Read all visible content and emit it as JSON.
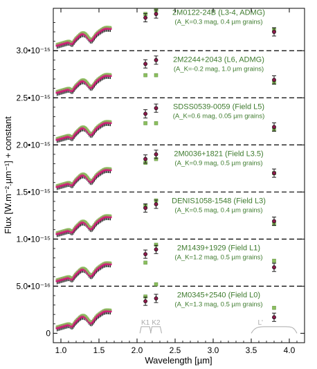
{
  "chart_data": {
    "type": "scatter",
    "xlabel": "Wavelength [µm]",
    "ylabel": "Flux [W.m⁻².µm⁻¹] + constant",
    "xlim": [
      0.9,
      4.2
    ],
    "ylim": [
      -1e-16,
      3.45e-15
    ],
    "x_ticks": [
      "1.0",
      "1.5",
      "2.0",
      "2.5",
      "3.0",
      "3.5",
      "4.0"
    ],
    "y_ticks": [
      {
        "v": 0,
        "label": "0"
      },
      {
        "v": 5e-16,
        "label": "5.0•10⁻¹⁶"
      },
      {
        "v": 1e-15,
        "label": "1.0•10⁻¹⁵"
      },
      {
        "v": 1.5e-15,
        "label": "1.5•10⁻¹⁵"
      },
      {
        "v": 2e-15,
        "label": "2.0•10⁻¹⁵"
      },
      {
        "v": 2.5e-15,
        "label": "2.5•10⁻¹⁵"
      },
      {
        "v": 3e-15,
        "label": "3.0•10⁻¹⁵"
      }
    ],
    "separators": [
      5e-16,
      1e-15,
      1.5e-15,
      2e-15,
      2.5e-15,
      3e-15
    ],
    "filters": [
      {
        "name": "K1",
        "center": 2.11
      },
      {
        "name": "K2",
        "center": 2.25
      },
      {
        "name": "L'",
        "center": 3.8
      }
    ],
    "colors": {
      "observed": "#1a1a1a",
      "observed_point": "#8b1a4a",
      "model": "#8cbf5e",
      "spectrum_dark": "#cc2277",
      "label": "#3e7b2e"
    },
    "series": [
      {
        "name": "2M0122-24B (L3-4, ADMG)",
        "subtitle": "(A_K=0.3 mag, 0.4 µm grains)",
        "base": 3.05e-15,
        "photometry": {
          "K1": 3.35e-15,
          "K2": 3.39e-15,
          "L": 3.2e-15
        },
        "model_photometry": {
          "K1": 3.39e-15,
          "K2": 3.43e-15,
          "L": 3.22e-15
        }
      },
      {
        "name": "2M2244+2043 (L6, ADMG)",
        "subtitle": "(A_K=-0.2 mag, 1.0 µm grains)",
        "base": 2.55e-15,
        "photometry": {
          "K1": 2.86e-15,
          "K2": 2.9e-15,
          "L": 2.69e-15
        },
        "model_photometry": {
          "K1": 2.74e-15,
          "K2": 2.74e-15,
          "L": 2.66e-15
        }
      },
      {
        "name": "SDSS0539-0059 (Field L5)",
        "subtitle": "(A_K=0.6 mag, 0.05 µm grains)",
        "base": 2.05e-15,
        "photometry": {
          "K1": 2.33e-15,
          "K2": 2.39e-15,
          "L": 2.19e-15
        },
        "model_photometry": {
          "K1": 2.23e-15,
          "K2": 2.23e-15,
          "L": 2.16e-15
        }
      },
      {
        "name": "2M0036+1821 (Field L3.5)",
        "subtitle": "(A_K=0.9 mag, 0.5 µm grains)",
        "base": 1.55e-15,
        "photometry": {
          "K1": 1.85e-15,
          "K2": 1.9e-15,
          "L": 1.7e-15
        },
        "model_photometry": {
          "K1": 1.81e-15,
          "K2": 1.85e-15,
          "L": 1.7e-15
        }
      },
      {
        "name": "DENIS1058-1548 (Field L3)",
        "subtitle": "(A_K=0.5 mag, 0.4 µm grains)",
        "base": 1.05e-15,
        "photometry": {
          "K1": 1.33e-15,
          "K2": 1.37e-15,
          "L": 1.19e-15
        },
        "model_photometry": {
          "K1": 1.35e-15,
          "K2": 1.41e-15,
          "L": 1.16e-15
        }
      },
      {
        "name": "2M1439+1929 (Field L1)",
        "subtitle": "(A_K=1.2 mag, 0.5 µm grains)",
        "base": 5.5e-16,
        "photometry": {
          "K1": 8.4e-16,
          "K2": 8.9e-16,
          "L": 7e-16
        },
        "model_photometry": {
          "K1": 7.5e-16,
          "K2": 9.4e-16,
          "L": 7.7e-16
        }
      },
      {
        "name": "2M0345+2540 (Field L0)",
        "subtitle": "(A_K=1.3 mag, 0.5 µm grains)",
        "base": 5e-17,
        "photometry": {
          "K1": 3.4e-16,
          "K2": 3.7e-16,
          "L": 1.7e-16
        },
        "model_photometry": {
          "K1": 3.9e-16,
          "K2": 5.2e-16,
          "L": 2.7e-16
        }
      }
    ]
  }
}
